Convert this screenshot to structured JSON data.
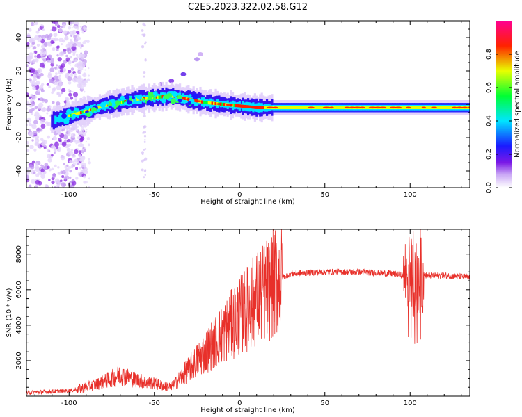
{
  "title": "C2E5.2023.322.02.58.G12",
  "colors": {
    "snr_line": "#e8302a",
    "axis": "#000000",
    "colormap": [
      "#ffffff",
      "#8a2be2",
      "#0000ff",
      "#00ffff",
      "#00ff00",
      "#ffff00",
      "#ff0000",
      "#ff007f"
    ]
  },
  "chart_data": [
    {
      "type": "heatmap",
      "name": "spectrogram",
      "xlabel": "Height of straight line (km)",
      "ylabel": "Frequency (Hz)",
      "xlim": [
        -125,
        135
      ],
      "ylim": [
        -50,
        50
      ],
      "xticks": [
        -100,
        -50,
        0,
        50,
        100
      ],
      "xtick_labels": [
        "-100",
        "-50",
        "0",
        "50",
        "100"
      ],
      "yticks": [
        -40,
        -20,
        0,
        20,
        40
      ],
      "ytick_labels": [
        "-40",
        "-20",
        "0",
        "20",
        "40"
      ],
      "colorbar": {
        "label": "Normalized spectral amplitude",
        "range": [
          0.0,
          1.0
        ],
        "ticks": [
          0.0,
          0.2,
          0.4,
          0.6,
          0.8
        ],
        "tick_labels": [
          "0.0",
          "0.2",
          "0.4",
          "0.6",
          "0.8"
        ]
      },
      "ridge": {
        "x": [
          -110,
          -100,
          -90,
          -80,
          -70,
          -60,
          -50,
          -40,
          -30,
          -20,
          -10,
          0,
          10,
          50,
          100,
          135
        ],
        "freq": [
          -10,
          -7,
          -4,
          -1,
          1,
          3,
          4,
          5,
          3,
          1,
          0,
          -1,
          -2,
          -2,
          -2,
          -2
        ]
      },
      "grid": false
    },
    {
      "type": "line",
      "name": "snr",
      "xlabel": "Height of straight line (km)",
      "ylabel": "SNR (10 * v/v)",
      "xlim": [
        -125,
        135
      ],
      "ylim": [
        0,
        9400
      ],
      "xticks": [
        -100,
        -50,
        0,
        50,
        100
      ],
      "xtick_labels": [
        "-100",
        "-50",
        "0",
        "50",
        "100"
      ],
      "yticks": [
        2000,
        4000,
        6000,
        8000
      ],
      "ytick_labels": [
        "2000",
        "4000",
        "6000",
        "8000"
      ],
      "envelope": {
        "x": [
          -125,
          -100,
          -90,
          -80,
          -70,
          -60,
          -50,
          -40,
          -30,
          -20,
          -10,
          0,
          10,
          20,
          25,
          30,
          50,
          70,
          90,
          97,
          100,
          103,
          106,
          110,
          120,
          135
        ],
        "y": [
          200,
          300,
          500,
          800,
          1200,
          900,
          700,
          500,
          1500,
          2500,
          3500,
          4500,
          5500,
          6300,
          6700,
          6900,
          7000,
          7000,
          6900,
          6800,
          7000,
          6500,
          6800,
          6800,
          6800,
          6700
        ]
      },
      "grid": false
    }
  ]
}
